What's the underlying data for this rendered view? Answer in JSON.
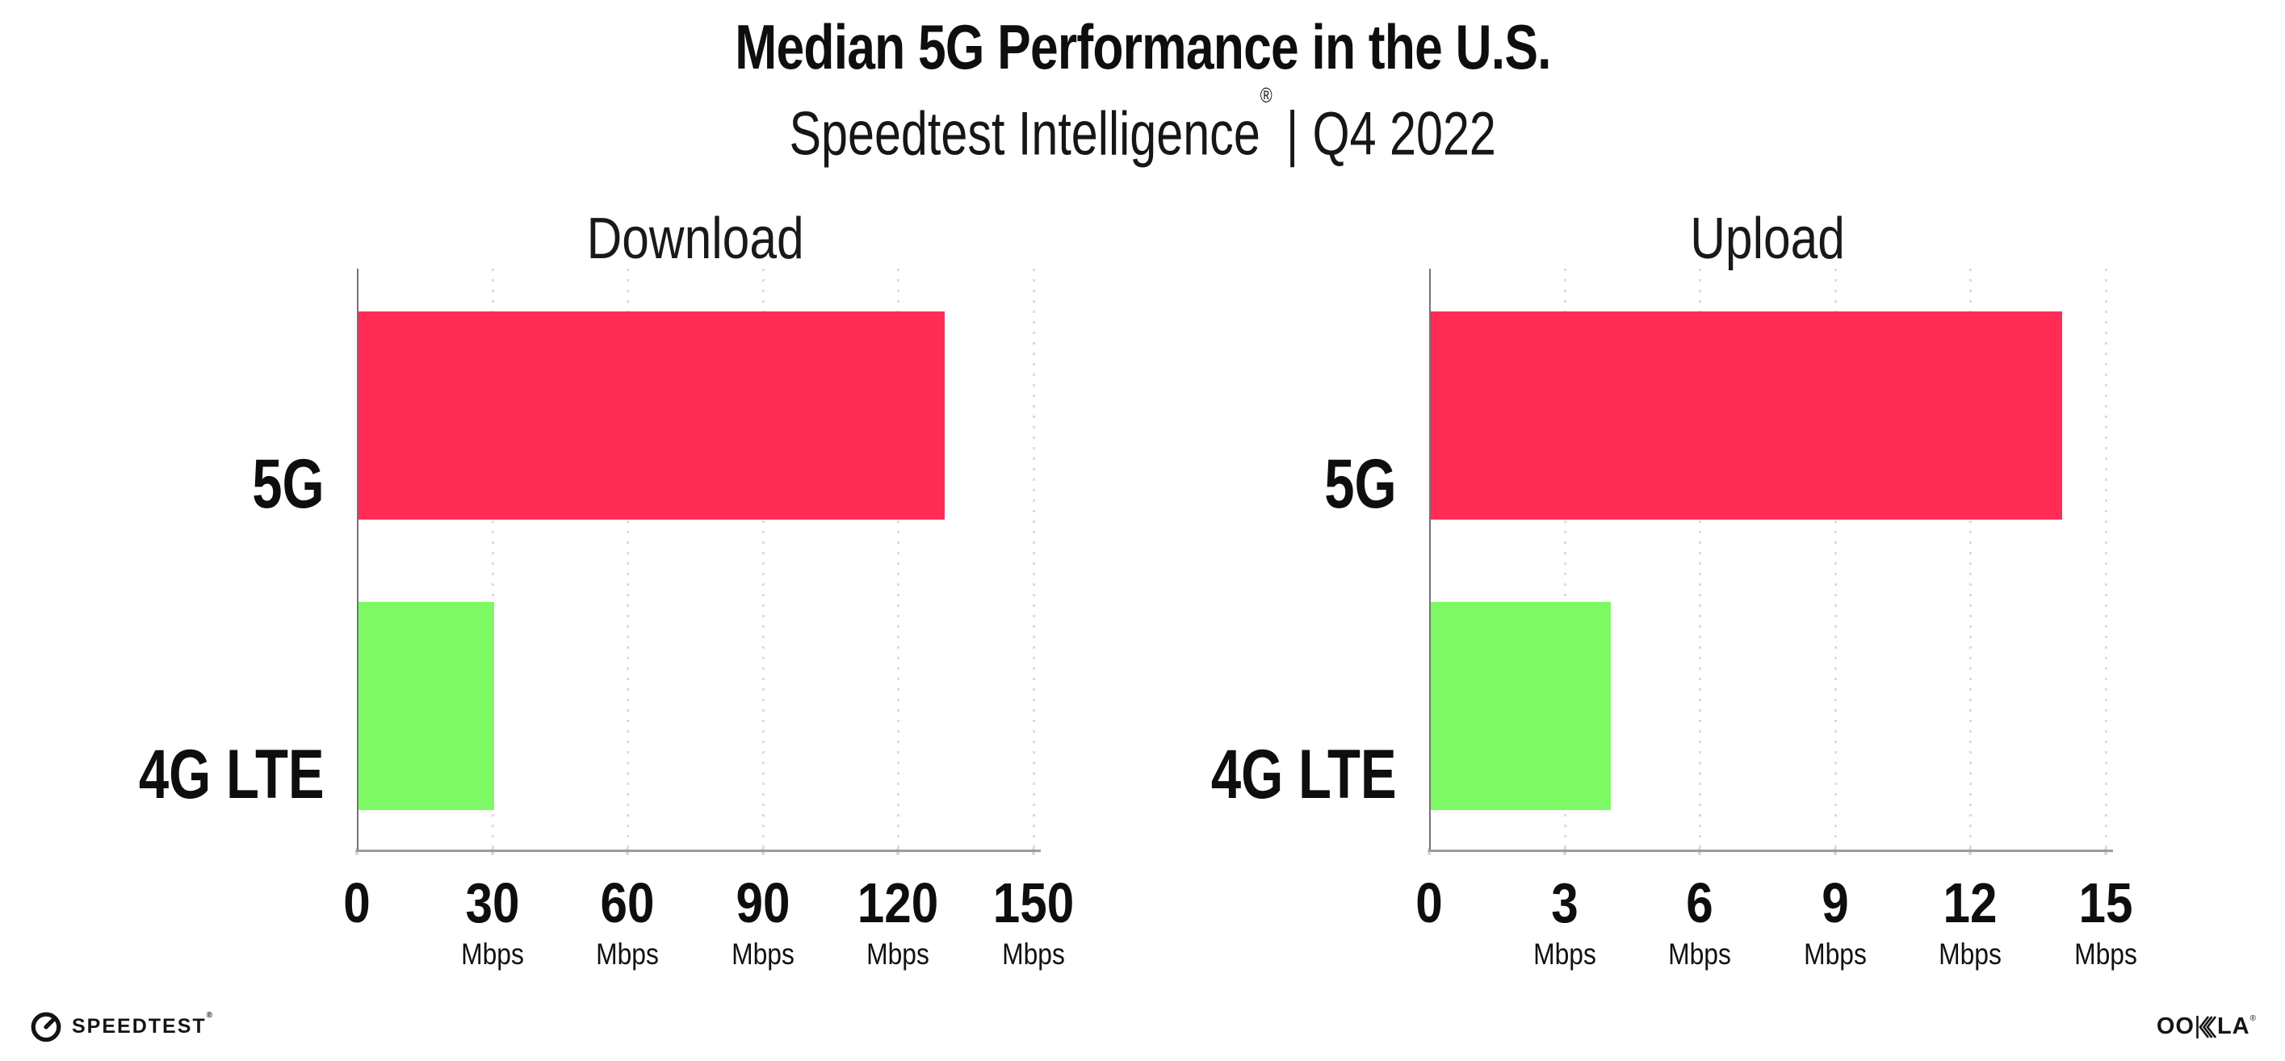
{
  "header": {
    "title": "Median 5G Performance in the U.S.",
    "subtitle": {
      "brand": "Speedtest Intelligence",
      "registered": "®",
      "separator": "|",
      "period": "Q4 2022"
    }
  },
  "chart_data": [
    {
      "type": "bar",
      "orientation": "horizontal",
      "title": "Download",
      "categories": [
        "5G",
        "4G LTE"
      ],
      "values": [
        130,
        30
      ],
      "unit": "Mbps",
      "xlim": [
        0,
        150
      ],
      "xticks": [
        0,
        30,
        60,
        90,
        120,
        150
      ],
      "tick_unit_label": "Mbps",
      "bar_colors": [
        "#FF2D55",
        "#7DF964"
      ],
      "grid": "dotted-vertical",
      "legend": "none"
    },
    {
      "type": "bar",
      "orientation": "horizontal",
      "title": "Upload",
      "categories": [
        "5G",
        "4G LTE"
      ],
      "values": [
        14,
        4
      ],
      "unit": "Mbps",
      "xlim": [
        0,
        15
      ],
      "xticks": [
        0,
        3,
        6,
        9,
        12,
        15
      ],
      "tick_unit_label": "Mbps",
      "bar_colors": [
        "#FF2D55",
        "#7DF964"
      ],
      "grid": "dotted-vertical",
      "legend": "none"
    }
  ],
  "palette": {
    "bar_5g": "#FF2D55",
    "bar_4g_lte": "#7DF964",
    "gridline": "#DBDBE5",
    "x_axis": "#9B9BA2",
    "y_axis": "#73737B",
    "text": "#0E0E10"
  },
  "footer": {
    "speedtest": {
      "label": "SPEEDTEST",
      "mark": "®"
    },
    "ookla": {
      "label": "OOKLA",
      "left": "OO",
      "right": "LA",
      "mark": "®"
    }
  }
}
